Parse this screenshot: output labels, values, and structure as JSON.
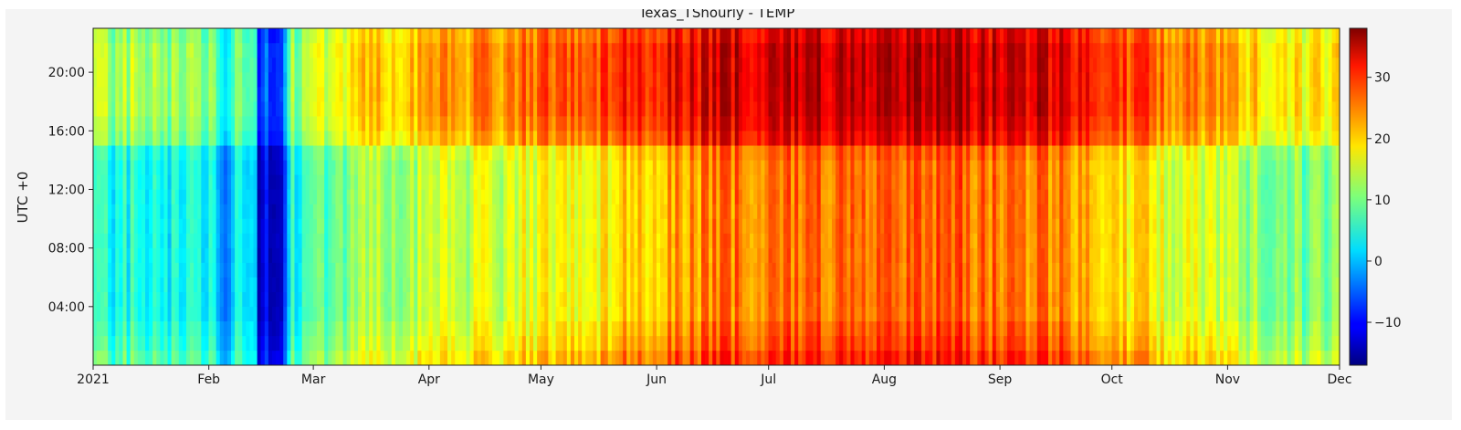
{
  "chart_data": {
    "type": "heatmap",
    "title": "Texas_TShourly - TEMP",
    "xlabel": "",
    "ylabel": "UTC +0",
    "x_axis": {
      "type": "date",
      "range": [
        "2021-01-01",
        "2021-12-01"
      ],
      "tick_values": [
        "2021-01-01",
        "2021-02-01",
        "2021-03-01",
        "2021-04-01",
        "2021-05-01",
        "2021-06-01",
        "2021-07-01",
        "2021-08-01",
        "2021-09-01",
        "2021-10-01",
        "2021-11-01",
        "2021-12-01"
      ],
      "tick_labels": [
        "2021",
        "Feb",
        "Mar",
        "Apr",
        "May",
        "Jun",
        "Jul",
        "Aug",
        "Sep",
        "Oct",
        "Nov",
        "Dec"
      ]
    },
    "y_axis": {
      "range": [
        0,
        23
      ],
      "tick_values": [
        4,
        8,
        12,
        16,
        20
      ],
      "tick_labels": [
        "04:00",
        "08:00",
        "12:00",
        "16:00",
        "20:00"
      ]
    },
    "colorbar": {
      "colormap": "jet",
      "range": [
        -17,
        38
      ],
      "tick_values": [
        -10,
        0,
        10,
        20,
        30
      ],
      "tick_labels": [
        "−10",
        "0",
        "10",
        "20",
        "30"
      ]
    },
    "grid": false,
    "approx_monthly_mean_temp": {
      "months": [
        "Jan",
        "Feb",
        "Mar",
        "Apr",
        "May",
        "Jun",
        "Jul",
        "Aug",
        "Sep",
        "Oct",
        "Nov"
      ],
      "night_hours_04_12": [
        5,
        2,
        12,
        15,
        18,
        24,
        25,
        26,
        24,
        16,
        10
      ],
      "day_hours_16_22": [
        13,
        8,
        20,
        24,
        28,
        33,
        34,
        35,
        33,
        25,
        18
      ]
    }
  }
}
